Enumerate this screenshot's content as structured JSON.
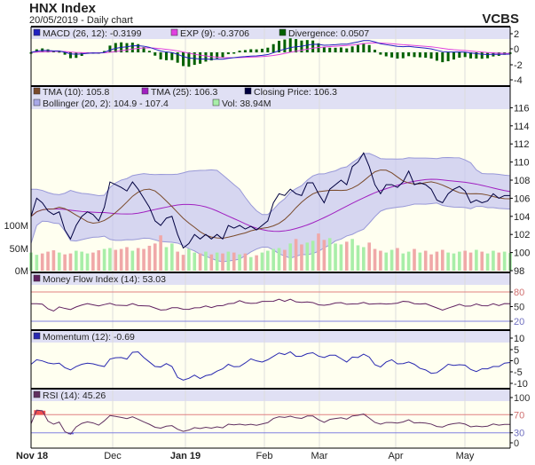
{
  "header": {
    "title": "HNX Index",
    "subtitle": "20/05/2019 - Daily chart",
    "brand": "VCBS"
  },
  "colors": {
    "close": "#000040",
    "tma10": "#7a4a2a",
    "tma25": "#a020c0",
    "band": "#c4c4f0",
    "vol_up": "#a8eea8",
    "vol_down": "#f0a8a8",
    "macd": "#2020c0",
    "exp": "#e040e0",
    "div": "#006000",
    "mfi": "#602060",
    "mom": "#2828b0",
    "rsi": "#603060"
  },
  "chart_data": [
    {
      "type": "line",
      "panel": "macd",
      "legend": [
        "MACD (26, 12): -0.3199",
        "EXP (9): -0.3706",
        "Divergence: 0.0507"
      ],
      "yticks": [
        "2",
        "0",
        "-2",
        "-4"
      ],
      "ylim": [
        -4,
        2
      ]
    },
    {
      "type": "line",
      "panel": "price",
      "legend": [
        "TMA (10): 105.8",
        "TMA (25): 106.3",
        "Closing Price: 106.3",
        "Bollinger (20, 2): 104.9 - 107.4",
        "Vol: 38.94M"
      ],
      "yticks": [
        "116",
        "114",
        "112",
        "110",
        "108",
        "106",
        "104",
        "102",
        "100",
        "98"
      ],
      "ylim": [
        98,
        116
      ],
      "vol_ticks": [
        "100M",
        "50M",
        "0M"
      ],
      "close": [
        104,
        106,
        105.5,
        104.6,
        104.2,
        104.5,
        102.5,
        101.5,
        103,
        104,
        104.5,
        104.2,
        103.5,
        105,
        107.8,
        107.5,
        107.2,
        106.8,
        107.8,
        107,
        106,
        105,
        103.5,
        103,
        103.8,
        104,
        102,
        100.5,
        101,
        102,
        101.5,
        102,
        101.5,
        102,
        101.5,
        103,
        102.7,
        103,
        102.6,
        102.9,
        102.5,
        103,
        103.5,
        105.5,
        106.5,
        106.3,
        107,
        106.5,
        106.3,
        107.7,
        107.7,
        106.5,
        105.5,
        107,
        107.5,
        108,
        107.5,
        109.5,
        110,
        111,
        109.5,
        107.5,
        106.5,
        107.5,
        107.5,
        107.2,
        107.8,
        109,
        107.5,
        107.7,
        107.5,
        107,
        105.8,
        105.5,
        106.5,
        107,
        107.3,
        106.8,
        105.5,
        105.8,
        105.5,
        105.7,
        106.5,
        106,
        106.3,
        106.3
      ],
      "volume": [
        40,
        35,
        38,
        42,
        45,
        40,
        36,
        38,
        44,
        42,
        38,
        40,
        45,
        48,
        50,
        46,
        48,
        52,
        44,
        50,
        48,
        55,
        60,
        78,
        52,
        60,
        42,
        35,
        48,
        40,
        38,
        42,
        36,
        40,
        38,
        42,
        40,
        36,
        38,
        30,
        34,
        40,
        44,
        48,
        50,
        46,
        60,
        70,
        58,
        62,
        66,
        82,
        68,
        72,
        60,
        58,
        64,
        70,
        56,
        52,
        62,
        48,
        44,
        40,
        46,
        50,
        38,
        42,
        48,
        40,
        44,
        36,
        42,
        46,
        40,
        38,
        42,
        44,
        40,
        46,
        42,
        38,
        44,
        40,
        42,
        39
      ]
    },
    {
      "type": "line",
      "panel": "mfi",
      "legend": [
        "Money Flow Index (14): 53.03"
      ],
      "yticks": [
        "80",
        "50",
        "20"
      ],
      "ylim": [
        0,
        100
      ]
    },
    {
      "type": "line",
      "panel": "momentum",
      "legend": [
        "Momentum (12): -0.69"
      ],
      "yticks": [
        "10",
        "5",
        "0",
        "-5",
        "-10"
      ],
      "ylim": [
        -10,
        10
      ]
    },
    {
      "type": "line",
      "panel": "rsi",
      "legend": [
        "RSI (14): 45.26"
      ],
      "yticks": [
        "100",
        "70",
        "30",
        "0"
      ],
      "ylim": [
        0,
        100
      ]
    }
  ],
  "xaxis": {
    "labels": [
      "Nov 18",
      "Dec",
      "Jan 19",
      "Feb",
      "Mar",
      "Apr",
      "May"
    ],
    "bold": [
      true,
      false,
      true,
      false,
      false,
      false,
      false
    ]
  }
}
